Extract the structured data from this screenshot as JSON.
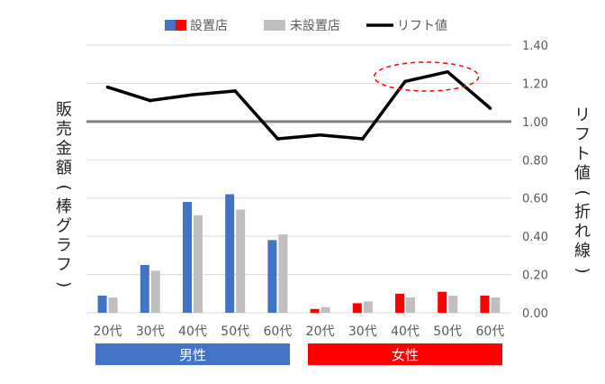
{
  "chart_data": {
    "type": "bar",
    "categories": [
      "20代",
      "30代",
      "40代",
      "50代",
      "60代",
      "20代",
      "30代",
      "40代",
      "50代",
      "60代"
    ],
    "groups": [
      {
        "name": "男性",
        "color": "#4472c4",
        "start": 0,
        "end": 4
      },
      {
        "name": "女性",
        "color": "#ff0000",
        "start": 5,
        "end": 9
      }
    ],
    "series": [
      {
        "name": "設置店",
        "kind": "bar",
        "colors_by_group": [
          "#4472c4",
          "#ff0000"
        ],
        "values": [
          0.09,
          0.25,
          0.58,
          0.62,
          0.38,
          0.02,
          0.05,
          0.1,
          0.11,
          0.09
        ]
      },
      {
        "name": "未設置店",
        "kind": "bar",
        "color": "#bfbfbf",
        "values": [
          0.08,
          0.22,
          0.51,
          0.54,
          0.41,
          0.03,
          0.06,
          0.08,
          0.09,
          0.08
        ]
      },
      {
        "name": "リフト値",
        "kind": "line",
        "color": "#000000",
        "values": [
          1.18,
          1.11,
          1.14,
          1.16,
          0.91,
          0.93,
          0.91,
          1.21,
          1.26,
          1.07
        ]
      }
    ],
    "ylabel": "販売金額(棒グラフ)",
    "y2label": "リフト値(折れ線)",
    "y2lim": [
      0,
      1.4
    ],
    "y2ticks": [
      "0.00",
      "0.20",
      "0.40",
      "0.60",
      "0.80",
      "1.00",
      "1.20",
      "1.40"
    ],
    "reference_line": {
      "value": 1.0,
      "color": "#808080"
    },
    "highlight": {
      "indices": [
        7,
        8
      ],
      "style": "dashed-ellipse",
      "color": "#ff0000"
    },
    "legend": {
      "placement": "top"
    },
    "grid": true
  }
}
